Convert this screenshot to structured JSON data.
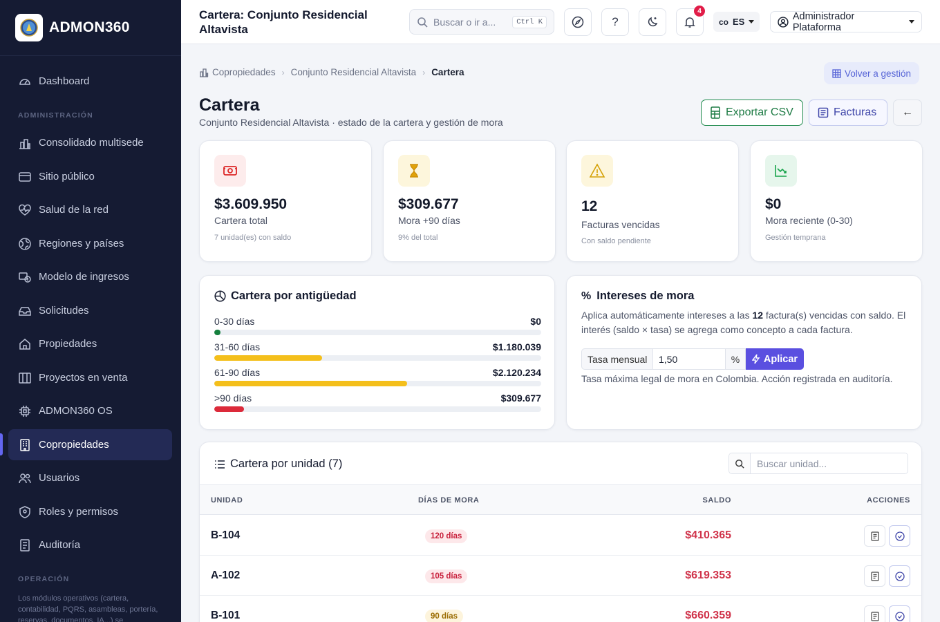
{
  "brand": {
    "name": "ADMON360"
  },
  "sidebar": {
    "items": [
      {
        "label": "Dashboard"
      },
      {
        "label": "Consolidado multisede"
      },
      {
        "label": "Sitio público"
      },
      {
        "label": "Salud de la red"
      },
      {
        "label": "Regiones y países"
      },
      {
        "label": "Modelo de ingresos"
      },
      {
        "label": "Solicitudes"
      },
      {
        "label": "Propiedades"
      },
      {
        "label": "Proyectos en venta"
      },
      {
        "label": "ADMON360 OS"
      },
      {
        "label": "Copropiedades",
        "active": true
      },
      {
        "label": "Usuarios"
      },
      {
        "label": "Roles y permisos"
      },
      {
        "label": "Auditoría"
      }
    ],
    "section_admin": "ADMINISTRACIÓN",
    "section_ops": "OPERACIÓN",
    "ops_note": "Los módulos operativos (cartera, contabilidad, PQRS, asambleas, portería, reservas, documentos, IA...) se"
  },
  "header": {
    "title": "Cartera: Conjunto Residencial Altavista",
    "search_placeholder": "Buscar o ir a...",
    "search_shortcut": "Ctrl K",
    "help_label": "?",
    "notification_count": "4",
    "country": "co",
    "lang": "ES",
    "user": "Administrador Plataforma"
  },
  "breadcrumb": {
    "items": [
      "Copropiedades",
      "Conjunto Residencial Altavista",
      "Cartera"
    ]
  },
  "back_to_management": "Volver a gestión",
  "page": {
    "title": "Cartera",
    "subtitle": "Conjunto Residencial Altavista · estado de la cartera y gestión de mora",
    "export_label": "Exportar CSV",
    "invoices_label": "Facturas",
    "back_arrow": "←"
  },
  "stats": [
    {
      "value": "$3.609.950",
      "label": "Cartera total",
      "hint": "7 unidad(es) con saldo",
      "color": "#dc2626",
      "bg": "#fdecec"
    },
    {
      "value": "$309.677",
      "label": "Mora +90 días",
      "hint": "9% del total",
      "color": "#ca8a04",
      "bg": "#fdf6dc"
    },
    {
      "value": "12",
      "label": "Facturas vencidas",
      "hint": "Con saldo pendiente",
      "color": "#d4a106",
      "bg": "#fdf6dc"
    },
    {
      "value": "$0",
      "label": "Mora reciente (0-30)",
      "hint": "Gestión temprana",
      "color": "#16a34a",
      "bg": "#e6f6ec"
    }
  ],
  "aging": {
    "title": "Cartera por antigüedad",
    "rows": [
      {
        "label": "0-30 días",
        "amount": "$0",
        "fraction": 0.018,
        "color": "#15803d"
      },
      {
        "label": "31-60 días",
        "amount": "$1.180.039",
        "fraction": 0.33,
        "color": "#f4bf1b"
      },
      {
        "label": "61-90 días",
        "amount": "$2.120.234",
        "fraction": 0.59,
        "color": "#f4bf1b"
      },
      {
        "label": ">90 días",
        "amount": "$309.677",
        "fraction": 0.09,
        "color": "#dc2a3a"
      }
    ]
  },
  "interest": {
    "title": "Intereses de mora",
    "text_before": "Aplica automáticamente intereses a las ",
    "count": "12",
    "text_after": " factura(s) vencidas con saldo. El interés (saldo × tasa) se agrega como concepto a cada factura.",
    "rate_label": "Tasa mensual",
    "rate_value": "1,50",
    "rate_unit": "%",
    "apply_label": "Aplicar",
    "note": "Tasa máxima legal de mora en Colombia. Acción registrada en auditoría."
  },
  "units": {
    "title": "Cartera por unidad (7)",
    "search_placeholder": "Buscar unidad...",
    "columns": [
      "UNIDAD",
      "DÍAS DE MORA",
      "SALDO",
      "ACCIONES"
    ],
    "rows": [
      {
        "unit": "B-104",
        "days": "120 días",
        "balance": "$410.365",
        "pill_bg": "#fde8ea",
        "pill_color": "#c81e3a"
      },
      {
        "unit": "A-102",
        "days": "105 días",
        "balance": "$619.353",
        "pill_bg": "#fde8ea",
        "pill_color": "#c81e3a"
      },
      {
        "unit": "B-101",
        "days": "90 días",
        "balance": "$660.359",
        "pill_bg": "#fdf4dc",
        "pill_color": "#9a6b00"
      }
    ]
  },
  "colors": {
    "accent": "#5a4fe0",
    "sidebar_bg": "#151b33",
    "danger": "#d0334a",
    "success": "#1f8a4c"
  }
}
